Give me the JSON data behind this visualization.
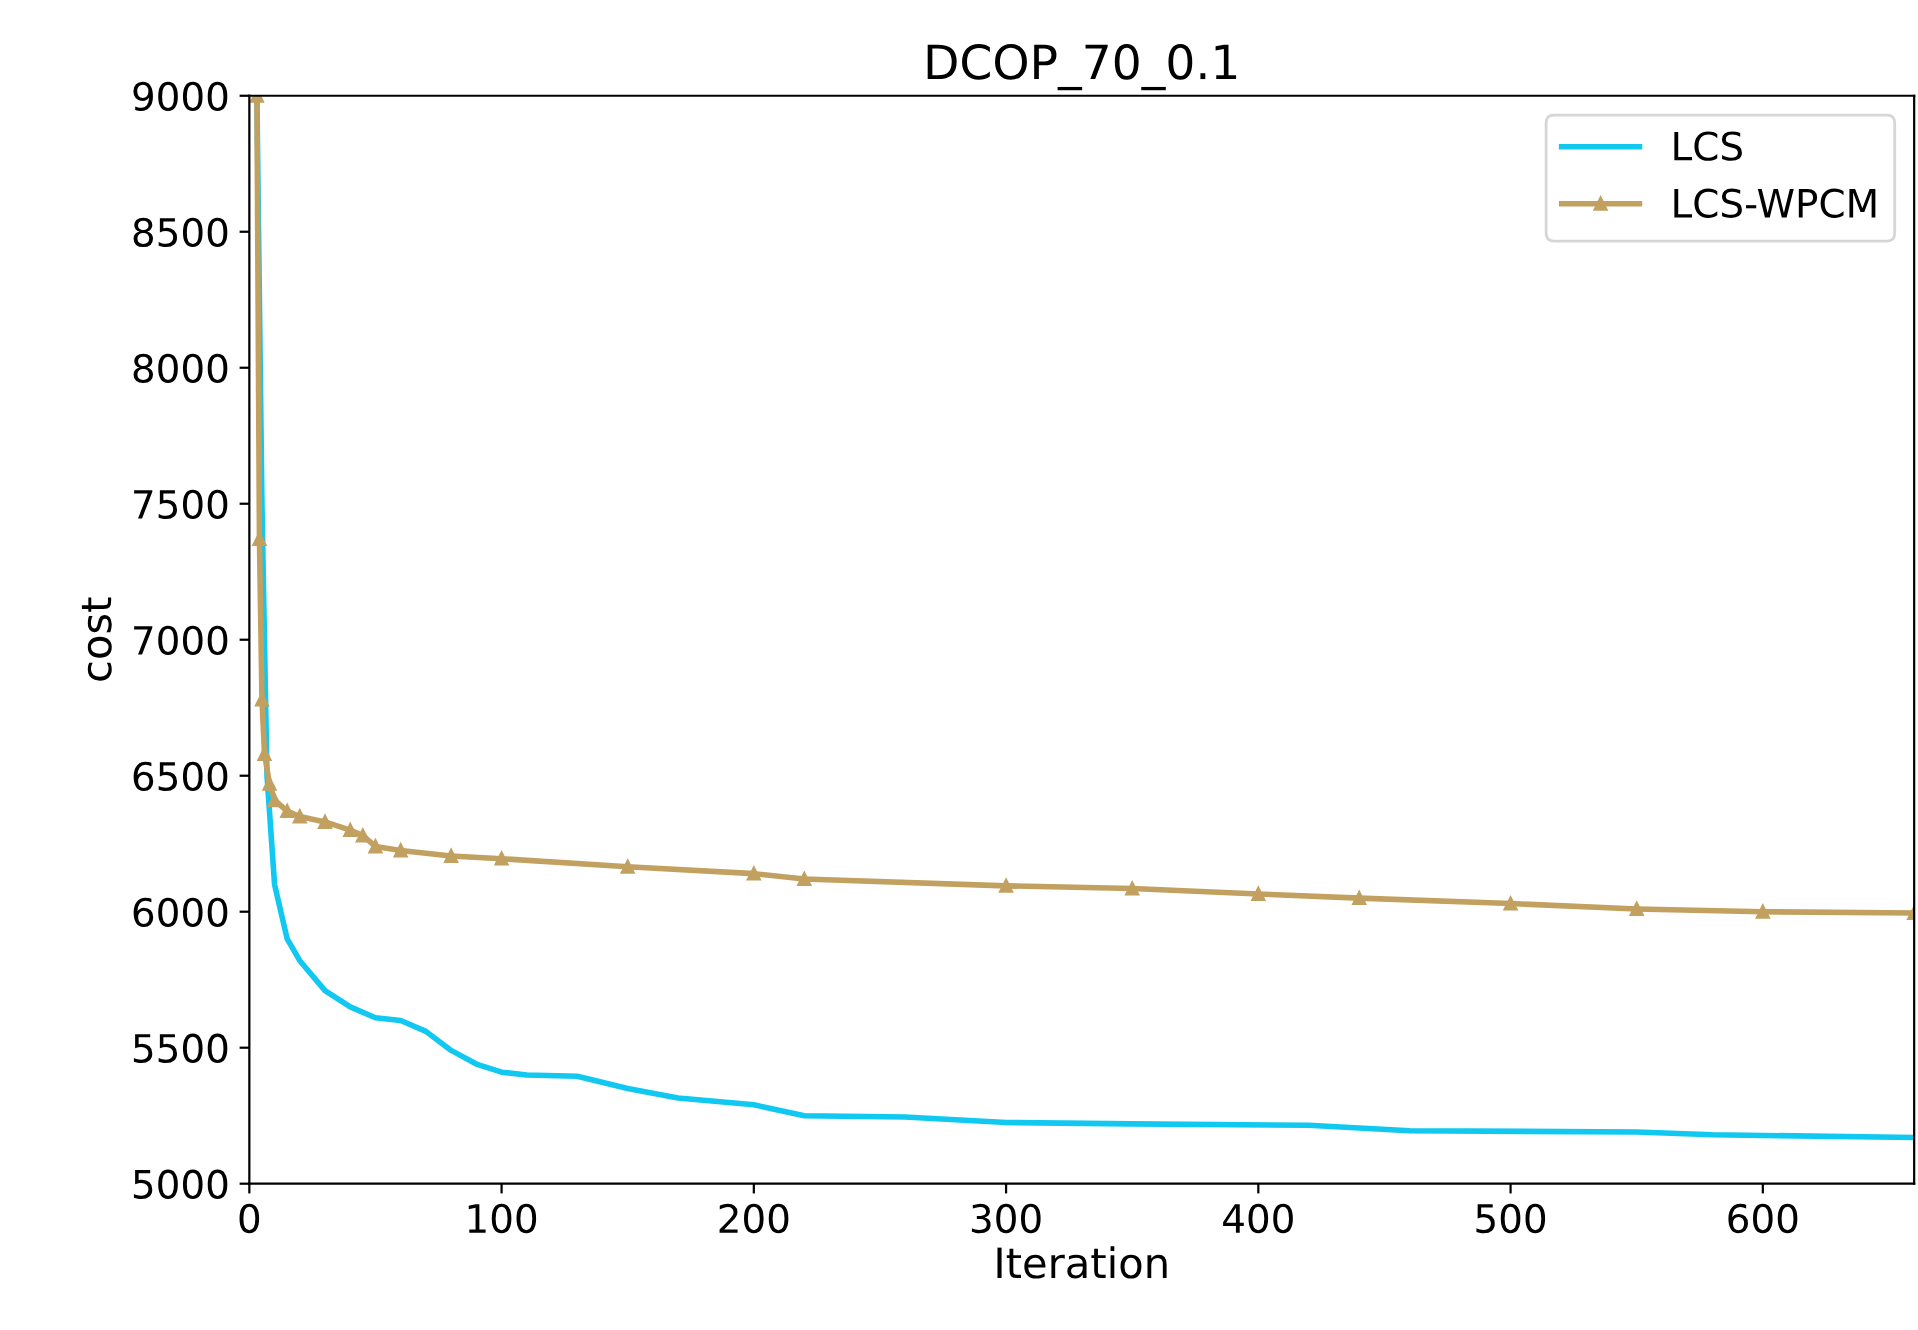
{
  "chart_data": {
    "type": "line",
    "title": "DCOP_70_0.1",
    "xlabel": "Iteration",
    "ylabel": "cost",
    "xlim": [
      0,
      660
    ],
    "ylim": [
      5000,
      9000
    ],
    "xticks": [
      0,
      100,
      200,
      300,
      400,
      500,
      600
    ],
    "yticks": [
      5000,
      5500,
      6000,
      6500,
      7000,
      7500,
      8000,
      8500,
      9000
    ],
    "grid": false,
    "legend": "top right",
    "series": [
      {
        "name": "LCS",
        "color": "#10c8f0",
        "marker": "none",
        "x": [
          3,
          5,
          7,
          10,
          15,
          20,
          30,
          40,
          50,
          60,
          70,
          80,
          90,
          100,
          110,
          130,
          150,
          170,
          200,
          220,
          260,
          300,
          350,
          420,
          460,
          550,
          580,
          660
        ],
        "values": [
          9000,
          7500,
          6500,
          6100,
          5900,
          5820,
          5710,
          5650,
          5610,
          5600,
          5560,
          5490,
          5440,
          5410,
          5400,
          5395,
          5350,
          5315,
          5290,
          5250,
          5245,
          5225,
          5220,
          5215,
          5195,
          5190,
          5180,
          5170
        ]
      },
      {
        "name": "LCS-WPCM",
        "color": "#c2a060",
        "marker": "triangle",
        "x": [
          3,
          4,
          5,
          6,
          8,
          10,
          15,
          20,
          30,
          40,
          45,
          50,
          60,
          80,
          100,
          150,
          200,
          220,
          300,
          350,
          400,
          440,
          500,
          550,
          600,
          660
        ],
        "values": [
          9000,
          7370,
          6780,
          6580,
          6470,
          6410,
          6370,
          6350,
          6330,
          6300,
          6280,
          6240,
          6225,
          6205,
          6195,
          6165,
          6140,
          6120,
          6095,
          6085,
          6065,
          6050,
          6030,
          6010,
          6000,
          5995
        ]
      }
    ]
  }
}
